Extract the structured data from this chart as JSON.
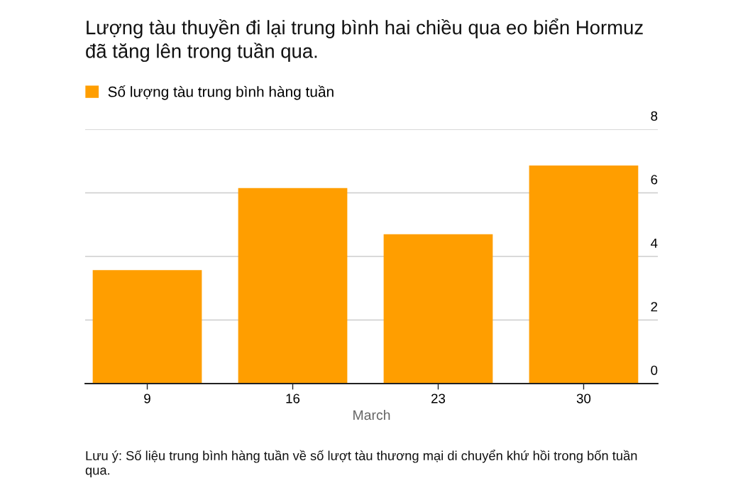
{
  "chart_data": {
    "type": "bar",
    "title": "Lượng tàu thuyền đi lại trung bình hai chiều qua eo biển Hormuz đã tăng lên trong tuần qua.",
    "categories": [
      "9",
      "16",
      "23",
      "30"
    ],
    "xlabel": "March",
    "series": [
      {
        "name": "Số lượng tàu trung bình hàng tuần",
        "color": "#ff9e00",
        "values": [
          3.57,
          6.15,
          4.7,
          6.86
        ]
      }
    ],
    "ylim": [
      0,
      8
    ],
    "yticks": [
      0,
      2,
      4,
      6,
      8
    ],
    "grid": "y",
    "legend": "top left",
    "annotations": [
      "Lưu ý: Số liệu trung bình hàng tuần về số lượt tàu thương mại di chuyển khứ hồi trong bốn tuần qua."
    ]
  }
}
